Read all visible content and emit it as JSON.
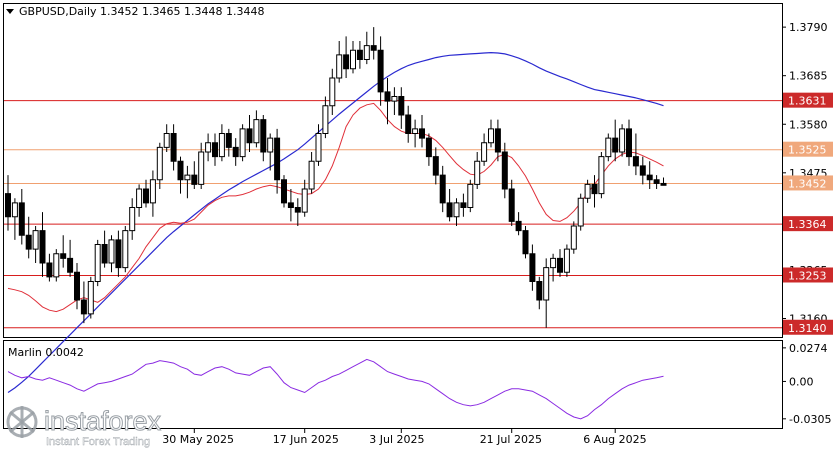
{
  "header": {
    "symbol_line": "GBPUSD,Daily  1.3452 1.3465 1.3448 1.3448"
  },
  "colors": {
    "background": "#ffffff",
    "plot_bg": "#ffffff",
    "frame": "#000000",
    "bull": "#ffffff",
    "bear": "#000000",
    "red_ma": "#e0303a",
    "blue_ma": "#2a2ad0",
    "level_red": "#d81e1e",
    "level_orange": "#f0a070",
    "marlin": "#8a2be2",
    "tag_red": "#cc2a2a",
    "tag_orange": "#f0a87c"
  },
  "price_axis": {
    "ticks": [
      "1.3790",
      "1.3685",
      "1.3580",
      "1.3475",
      "1.3265",
      "1.3160"
    ]
  },
  "level_tags": [
    {
      "label": "1.3631",
      "value": 1.3631,
      "kind": "red"
    },
    {
      "label": "1.3525",
      "value": 1.3525,
      "kind": "orange"
    },
    {
      "label": "1.3452",
      "value": 1.3452,
      "kind": "orange"
    },
    {
      "label": "1.3364",
      "value": 1.3364,
      "kind": "red"
    },
    {
      "label": "1.3253",
      "value": 1.3253,
      "kind": "red"
    },
    {
      "label": "1.3140",
      "value": 1.314,
      "kind": "red"
    }
  ],
  "time_axis": {
    "labels": [
      "30 May 2025",
      "17 Jun 2025",
      "3 Jul 2025",
      "21 Jul 2025",
      "6 Aug 2025"
    ]
  },
  "indicator": {
    "label": "Marlin 0.0042",
    "ticks": [
      "0.0274",
      "0.00",
      "-0.0305"
    ]
  },
  "watermark": {
    "brand": "instaforex",
    "tagline": "Instant Forex Trading"
  },
  "chart_data": {
    "type": "candlestick",
    "ylim": [
      1.312,
      1.384
    ],
    "ohlc": [
      [
        1.343,
        1.347,
        1.335,
        1.338
      ],
      [
        1.338,
        1.342,
        1.333,
        1.341
      ],
      [
        1.341,
        1.344,
        1.332,
        1.334
      ],
      [
        1.334,
        1.338,
        1.329,
        1.331
      ],
      [
        1.331,
        1.336,
        1.328,
        1.335
      ],
      [
        1.335,
        1.339,
        1.325,
        1.328
      ],
      [
        1.328,
        1.33,
        1.324,
        1.325
      ],
      [
        1.325,
        1.331,
        1.324,
        1.33
      ],
      [
        1.33,
        1.334,
        1.327,
        1.329
      ],
      [
        1.329,
        1.333,
        1.325,
        1.326
      ],
      [
        1.326,
        1.328,
        1.318,
        1.32
      ],
      [
        1.32,
        1.324,
        1.315,
        1.317
      ],
      [
        1.317,
        1.325,
        1.316,
        1.324
      ],
      [
        1.324,
        1.333,
        1.323,
        1.332
      ],
      [
        1.332,
        1.335,
        1.327,
        1.328
      ],
      [
        1.328,
        1.334,
        1.326,
        1.333
      ],
      [
        1.333,
        1.335,
        1.325,
        1.327
      ],
      [
        1.327,
        1.336,
        1.326,
        1.335
      ],
      [
        1.335,
        1.342,
        1.333,
        1.34
      ],
      [
        1.34,
        1.345,
        1.338,
        1.344
      ],
      [
        1.344,
        1.346,
        1.34,
        1.341
      ],
      [
        1.341,
        1.348,
        1.338,
        1.346
      ],
      [
        1.346,
        1.354,
        1.344,
        1.353
      ],
      [
        1.353,
        1.358,
        1.352,
        1.356
      ],
      [
        1.356,
        1.358,
        1.348,
        1.35
      ],
      [
        1.35,
        1.351,
        1.343,
        1.346
      ],
      [
        1.346,
        1.349,
        1.342,
        1.347
      ],
      [
        1.347,
        1.35,
        1.344,
        1.345
      ],
      [
        1.345,
        1.354,
        1.344,
        1.352
      ],
      [
        1.352,
        1.356,
        1.35,
        1.354
      ],
      [
        1.354,
        1.356,
        1.349,
        1.351
      ],
      [
        1.351,
        1.358,
        1.35,
        1.356
      ],
      [
        1.356,
        1.357,
        1.351,
        1.353
      ],
      [
        1.353,
        1.355,
        1.349,
        1.351
      ],
      [
        1.351,
        1.358,
        1.35,
        1.357
      ],
      [
        1.357,
        1.36,
        1.352,
        1.354
      ],
      [
        1.354,
        1.361,
        1.353,
        1.359
      ],
      [
        1.359,
        1.36,
        1.35,
        1.352
      ],
      [
        1.352,
        1.356,
        1.348,
        1.355
      ],
      [
        1.355,
        1.357,
        1.343,
        1.346
      ],
      [
        1.346,
        1.347,
        1.34,
        1.341
      ],
      [
        1.341,
        1.344,
        1.337,
        1.34
      ],
      [
        1.34,
        1.342,
        1.336,
        1.339
      ],
      [
        1.339,
        1.346,
        1.338,
        1.344
      ],
      [
        1.344,
        1.352,
        1.343,
        1.35
      ],
      [
        1.35,
        1.358,
        1.349,
        1.356
      ],
      [
        1.356,
        1.364,
        1.355,
        1.362
      ],
      [
        1.362,
        1.37,
        1.36,
        1.368
      ],
      [
        1.368,
        1.376,
        1.367,
        1.373
      ],
      [
        1.373,
        1.377,
        1.368,
        1.37
      ],
      [
        1.37,
        1.376,
        1.369,
        1.374
      ],
      [
        1.374,
        1.376,
        1.37,
        1.372
      ],
      [
        1.372,
        1.378,
        1.371,
        1.375
      ],
      [
        1.375,
        1.379,
        1.372,
        1.374
      ],
      [
        1.374,
        1.377,
        1.362,
        1.365
      ],
      [
        1.365,
        1.368,
        1.358,
        1.363
      ],
      [
        1.363,
        1.366,
        1.36,
        1.364
      ],
      [
        1.364,
        1.366,
        1.357,
        1.36
      ],
      [
        1.36,
        1.362,
        1.354,
        1.356
      ],
      [
        1.356,
        1.359,
        1.353,
        1.357
      ],
      [
        1.357,
        1.36,
        1.353,
        1.355
      ],
      [
        1.355,
        1.356,
        1.349,
        1.351
      ],
      [
        1.351,
        1.353,
        1.345,
        1.347
      ],
      [
        1.347,
        1.349,
        1.339,
        1.341
      ],
      [
        1.341,
        1.344,
        1.337,
        1.338
      ],
      [
        1.338,
        1.342,
        1.336,
        1.341
      ],
      [
        1.341,
        1.343,
        1.338,
        1.34
      ],
      [
        1.34,
        1.346,
        1.339,
        1.345
      ],
      [
        1.345,
        1.352,
        1.344,
        1.35
      ],
      [
        1.35,
        1.356,
        1.349,
        1.354
      ],
      [
        1.354,
        1.359,
        1.353,
        1.357
      ],
      [
        1.357,
        1.359,
        1.35,
        1.352
      ],
      [
        1.352,
        1.354,
        1.342,
        1.344
      ],
      [
        1.344,
        1.346,
        1.336,
        1.337
      ],
      [
        1.337,
        1.339,
        1.334,
        1.335
      ],
      [
        1.335,
        1.336,
        1.329,
        1.33
      ],
      [
        1.33,
        1.332,
        1.322,
        1.324
      ],
      [
        1.324,
        1.325,
        1.318,
        1.32
      ],
      [
        1.32,
        1.329,
        1.314,
        1.327
      ],
      [
        1.327,
        1.33,
        1.324,
        1.329
      ],
      [
        1.329,
        1.331,
        1.325,
        1.326
      ],
      [
        1.326,
        1.332,
        1.325,
        1.331
      ],
      [
        1.331,
        1.337,
        1.33,
        1.336
      ],
      [
        1.336,
        1.343,
        1.335,
        1.342
      ],
      [
        1.342,
        1.346,
        1.341,
        1.345
      ],
      [
        1.345,
        1.347,
        1.34,
        1.343
      ],
      [
        1.343,
        1.352,
        1.342,
        1.351
      ],
      [
        1.351,
        1.356,
        1.35,
        1.355
      ],
      [
        1.355,
        1.359,
        1.35,
        1.352
      ],
      [
        1.352,
        1.358,
        1.351,
        1.357
      ],
      [
        1.357,
        1.359,
        1.349,
        1.351
      ],
      [
        1.351,
        1.356,
        1.347,
        1.349
      ],
      [
        1.349,
        1.351,
        1.345,
        1.347
      ],
      [
        1.347,
        1.35,
        1.344,
        1.346
      ],
      [
        1.346,
        1.347,
        1.344,
        1.3452
      ],
      [
        1.3452,
        1.3465,
        1.3448,
        1.3448
      ]
    ],
    "red_ma": [
      1.3225,
      1.3222,
      1.3218,
      1.321,
      1.3198,
      1.3185,
      1.3178,
      1.3175,
      1.318,
      1.319,
      1.32,
      1.3205,
      1.32,
      1.3195,
      1.3205,
      1.322,
      1.3235,
      1.325,
      1.327,
      1.329,
      1.3315,
      1.3335,
      1.3355,
      1.3365,
      1.3368,
      1.3366,
      1.3368,
      1.3375,
      1.339,
      1.3405,
      1.3415,
      1.3422,
      1.3425,
      1.3425,
      1.3428,
      1.3433,
      1.344,
      1.3445,
      1.3448,
      1.3445,
      1.344,
      1.3435,
      1.343,
      1.3428,
      1.343,
      1.344,
      1.346,
      1.349,
      1.353,
      1.3575,
      1.36,
      1.3615,
      1.3622,
      1.3625,
      1.361,
      1.359,
      1.3575,
      1.3565,
      1.356,
      1.356,
      1.356,
      1.3555,
      1.3545,
      1.353,
      1.3512,
      1.3495,
      1.3482,
      1.3472,
      1.347,
      1.3478,
      1.3492,
      1.351,
      1.3515,
      1.3508,
      1.349,
      1.3468,
      1.344,
      1.341,
      1.3385,
      1.3372,
      1.337,
      1.3378,
      1.3392,
      1.341,
      1.3432,
      1.345,
      1.347,
      1.349,
      1.3505,
      1.3515,
      1.352,
      1.3518,
      1.3512,
      1.3505,
      1.3498,
      1.349
    ],
    "blue_ma": [
      1.3,
      1.301,
      1.3022,
      1.3035,
      1.305,
      1.3065,
      1.308,
      1.3095,
      1.311,
      1.3125,
      1.314,
      1.3155,
      1.317,
      1.3185,
      1.32,
      1.3215,
      1.323,
      1.3245,
      1.326,
      1.3275,
      1.329,
      1.3305,
      1.332,
      1.3335,
      1.3348,
      1.336,
      1.3372,
      1.3384,
      1.3396,
      1.3408,
      1.3418,
      1.3428,
      1.3438,
      1.3447,
      1.3456,
      1.3464,
      1.3472,
      1.348,
      1.3488,
      1.3496,
      1.3505,
      1.3515,
      1.3525,
      1.3537,
      1.355,
      1.3563,
      1.3576,
      1.3589,
      1.3602,
      1.3614,
      1.3626,
      1.3638,
      1.365,
      1.3662,
      1.3673,
      1.3683,
      1.3692,
      1.37,
      1.3707,
      1.3712,
      1.3716,
      1.372,
      1.3724,
      1.3727,
      1.3729,
      1.373,
      1.3731,
      1.3732,
      1.3733,
      1.3734,
      1.3735,
      1.3734,
      1.3732,
      1.3728,
      1.3723,
      1.3717,
      1.371,
      1.3702,
      1.3695,
      1.3689,
      1.3683,
      1.3678,
      1.3672,
      1.3666,
      1.366,
      1.3655,
      1.3652,
      1.3649,
      1.3646,
      1.3643,
      1.364,
      1.3637,
      1.3633,
      1.3629,
      1.3625,
      1.362
    ],
    "marlin": [
      0.008,
      0.005,
      0.003,
      0.004,
      0.002,
      0.001,
      0.003,
      0.001,
      -0.001,
      -0.003,
      -0.006,
      -0.008,
      -0.005,
      -0.002,
      -0.001,
      0.0,
      0.002,
      0.004,
      0.006,
      0.01,
      0.014,
      0.015,
      0.017,
      0.016,
      0.015,
      0.012,
      0.01,
      0.006,
      0.005,
      0.008,
      0.011,
      0.012,
      0.01,
      0.007,
      0.006,
      0.005,
      0.008,
      0.011,
      0.012,
      0.006,
      -0.001,
      -0.005,
      -0.007,
      -0.009,
      -0.005,
      -0.001,
      0.001,
      0.004,
      0.006,
      0.009,
      0.012,
      0.015,
      0.018,
      0.016,
      0.012,
      0.008,
      0.006,
      0.004,
      0.002,
      0.001,
      0.0,
      -0.002,
      -0.006,
      -0.01,
      -0.014,
      -0.017,
      -0.019,
      -0.02,
      -0.019,
      -0.017,
      -0.014,
      -0.011,
      -0.008,
      -0.006,
      -0.006,
      -0.007,
      -0.008,
      -0.011,
      -0.014,
      -0.018,
      -0.022,
      -0.026,
      -0.029,
      -0.0305,
      -0.028,
      -0.023,
      -0.019,
      -0.014,
      -0.01,
      -0.006,
      -0.003,
      -0.001,
      0.001,
      0.002,
      0.003,
      0.0042
    ],
    "marlin_range": [
      -0.038,
      0.033
    ]
  }
}
